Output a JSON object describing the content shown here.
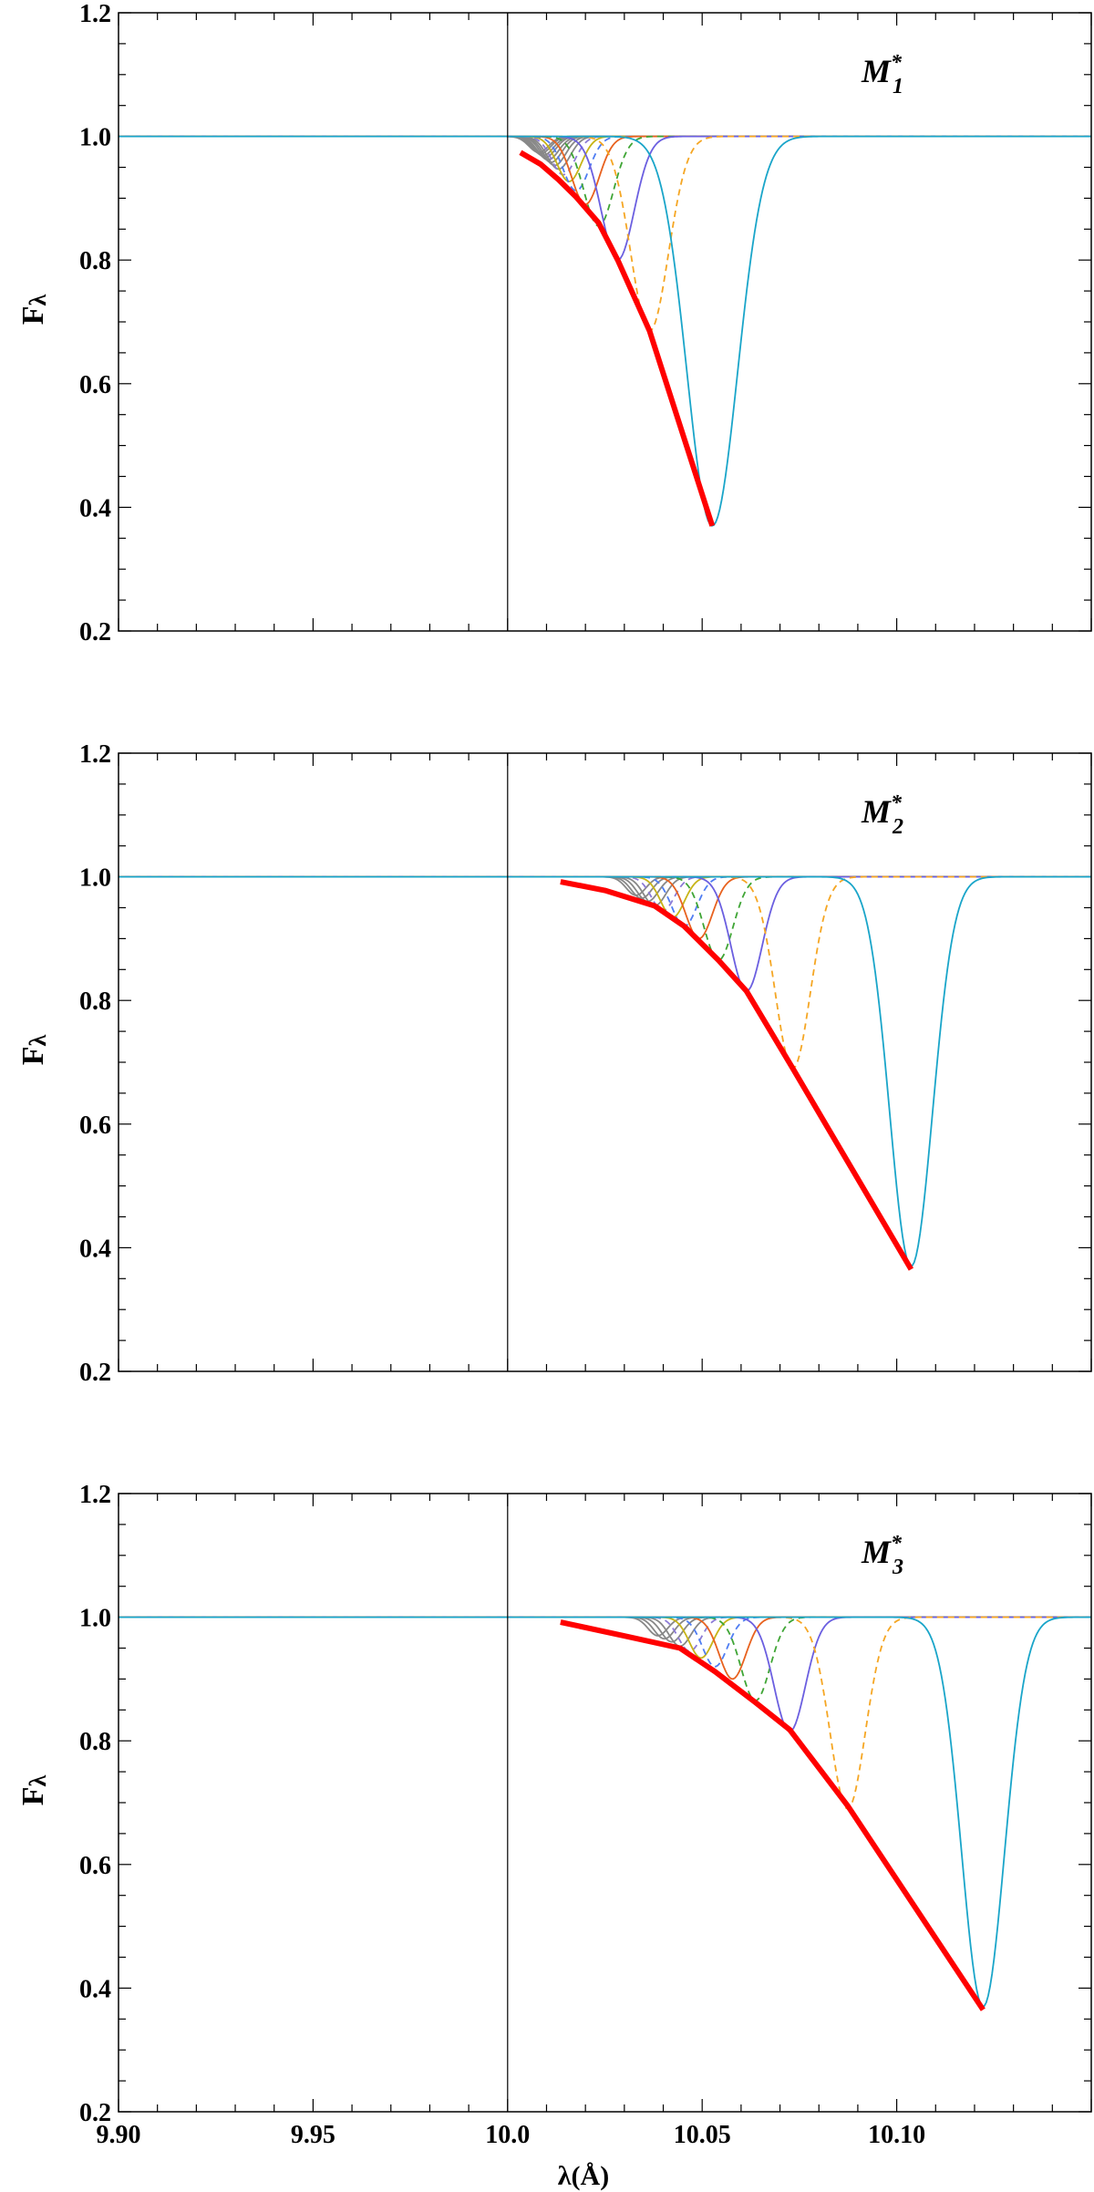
{
  "chart_data": {
    "type": "line",
    "xlabel": "λ(Å)",
    "x_ticks": [
      "9.90",
      "9.95",
      "10.0",
      "10.05",
      "10.10"
    ],
    "y_ticks": [
      "0.2",
      "0.4",
      "0.6",
      "0.8",
      "1.0",
      "1.2"
    ],
    "xlim": [
      9.9,
      10.15
    ],
    "ylim": [
      0.2,
      1.2
    ],
    "reference_line_x": 10.0,
    "grid": false,
    "panels": [
      {
        "title": "M",
        "title_subscript": "1",
        "title_superscript": "*",
        "ylabel": "F",
        "ylabel_subscript": "λ",
        "line_profiles": [
          {
            "center": 10.0526,
            "depth": 0.63,
            "width": 0.0065,
            "color": "#1aa5c9",
            "dashed": false
          },
          {
            "center": 10.0365,
            "depth": 0.315,
            "width": 0.0048,
            "color": "#f5a623",
            "dashed": true
          },
          {
            "center": 10.0283,
            "depth": 0.2,
            "width": 0.0042,
            "color": "#6b5fe0",
            "dashed": false
          },
          {
            "center": 10.0234,
            "depth": 0.145,
            "width": 0.0038,
            "color": "#3fa535",
            "dashed": true
          },
          {
            "center": 10.02,
            "depth": 0.11,
            "width": 0.0035,
            "color": "#e8621f",
            "dashed": false
          },
          {
            "center": 10.0176,
            "depth": 0.088,
            "width": 0.0033,
            "color": "#4f7df2",
            "dashed": true
          },
          {
            "center": 10.0158,
            "depth": 0.073,
            "width": 0.0031,
            "color": "#c7b417",
            "dashed": false
          },
          {
            "center": 10.0143,
            "depth": 0.062,
            "width": 0.003,
            "color": "#8c7bd6",
            "dashed": true
          },
          {
            "center": 10.0131,
            "depth": 0.053,
            "width": 0.0029,
            "color": "#888888",
            "dashed": false
          },
          {
            "center": 10.0121,
            "depth": 0.047,
            "width": 0.0028,
            "color": "#888888",
            "dashed": false
          },
          {
            "center": 10.0112,
            "depth": 0.042,
            "width": 0.0027,
            "color": "#888888",
            "dashed": false
          },
          {
            "center": 10.0104,
            "depth": 0.038,
            "width": 0.0027,
            "color": "#888888",
            "dashed": false
          },
          {
            "center": 10.0097,
            "depth": 0.034,
            "width": 0.0026,
            "color": "#888888",
            "dashed": false
          },
          {
            "center": 10.0091,
            "depth": 0.031,
            "width": 0.0026,
            "color": "#888888",
            "dashed": false
          },
          {
            "center": 10.0085,
            "depth": 0.028,
            "width": 0.0025,
            "color": "#888888",
            "dashed": false
          },
          {
            "center": 10.008,
            "depth": 0.026,
            "width": 0.0025,
            "color": "#888888",
            "dashed": false
          }
        ],
        "envelope": {
          "color": "#ff0000",
          "x": [
            10.0033,
            10.0085,
            10.0131,
            10.0176,
            10.0234,
            10.0283,
            10.0365,
            10.0526
          ],
          "y": [
            0.974,
            0.955,
            0.93,
            0.902,
            0.86,
            0.8,
            0.685,
            0.37
          ]
        }
      },
      {
        "title": "M",
        "title_subscript": "2",
        "title_superscript": "*",
        "ylabel": "F",
        "ylabel_subscript": "λ",
        "line_profiles": [
          {
            "center": 10.1037,
            "depth": 0.63,
            "width": 0.0055,
            "color": "#1aa5c9",
            "dashed": false
          },
          {
            "center": 10.0733,
            "depth": 0.31,
            "width": 0.0045,
            "color": "#f5a623",
            "dashed": true
          },
          {
            "center": 10.0614,
            "depth": 0.185,
            "width": 0.004,
            "color": "#6b5fe0",
            "dashed": false
          },
          {
            "center": 10.0542,
            "depth": 0.135,
            "width": 0.0037,
            "color": "#3fa535",
            "dashed": true
          },
          {
            "center": 10.0492,
            "depth": 0.1,
            "width": 0.0034,
            "color": "#e8621f",
            "dashed": false
          },
          {
            "center": 10.0454,
            "depth": 0.08,
            "width": 0.0032,
            "color": "#4f7df2",
            "dashed": true
          },
          {
            "center": 10.0424,
            "depth": 0.066,
            "width": 0.003,
            "color": "#c7b417",
            "dashed": false
          },
          {
            "center": 10.0399,
            "depth": 0.055,
            "width": 0.0029,
            "color": "#8c7bd6",
            "dashed": true
          },
          {
            "center": 10.0378,
            "depth": 0.047,
            "width": 0.0028,
            "color": "#888888",
            "dashed": false
          },
          {
            "center": 10.036,
            "depth": 0.04,
            "width": 0.0027,
            "color": "#888888",
            "dashed": false
          },
          {
            "center": 10.0344,
            "depth": 0.035,
            "width": 0.0026,
            "color": "#888888",
            "dashed": false
          },
          {
            "center": 10.033,
            "depth": 0.03,
            "width": 0.0025,
            "color": "#888888",
            "dashed": false
          }
        ],
        "envelope": {
          "color": "#ff0000",
          "x": [
            10.0136,
            10.025,
            10.0378,
            10.0454,
            10.0542,
            10.0614,
            10.0733,
            10.1037
          ],
          "y": [
            0.992,
            0.978,
            0.953,
            0.92,
            0.865,
            0.815,
            0.69,
            0.365
          ]
        }
      },
      {
        "title": "M",
        "title_subscript": "3",
        "title_superscript": "*",
        "ylabel": "F",
        "ylabel_subscript": "λ",
        "line_profiles": [
          {
            "center": 10.1222,
            "depth": 0.63,
            "width": 0.0055,
            "color": "#1aa5c9",
            "dashed": false
          },
          {
            "center": 10.0874,
            "depth": 0.31,
            "width": 0.0045,
            "color": "#f5a623",
            "dashed": true
          },
          {
            "center": 10.0725,
            "depth": 0.185,
            "width": 0.004,
            "color": "#6b5fe0",
            "dashed": false
          },
          {
            "center": 10.0637,
            "depth": 0.135,
            "width": 0.0037,
            "color": "#3fa535",
            "dashed": true
          },
          {
            "center": 10.0578,
            "depth": 0.1,
            "width": 0.0034,
            "color": "#e8621f",
            "dashed": false
          },
          {
            "center": 10.0533,
            "depth": 0.08,
            "width": 0.0032,
            "color": "#4f7df2",
            "dashed": true
          },
          {
            "center": 10.0497,
            "depth": 0.066,
            "width": 0.003,
            "color": "#c7b417",
            "dashed": false
          },
          {
            "center": 10.0468,
            "depth": 0.055,
            "width": 0.0029,
            "color": "#8c7bd6",
            "dashed": true
          },
          {
            "center": 10.0443,
            "depth": 0.047,
            "width": 0.0028,
            "color": "#888888",
            "dashed": false
          },
          {
            "center": 10.0422,
            "depth": 0.04,
            "width": 0.0027,
            "color": "#888888",
            "dashed": false
          },
          {
            "center": 10.0403,
            "depth": 0.035,
            "width": 0.0026,
            "color": "#888888",
            "dashed": false
          },
          {
            "center": 10.0386,
            "depth": 0.03,
            "width": 0.0025,
            "color": "#888888",
            "dashed": false
          }
        ],
        "envelope": {
          "color": "#ff0000",
          "x": [
            10.0136,
            10.0298,
            10.0443,
            10.0533,
            10.0637,
            10.0725,
            10.0874,
            10.1222
          ],
          "y": [
            0.992,
            0.97,
            0.95,
            0.912,
            0.862,
            0.818,
            0.695,
            0.365
          ]
        }
      }
    ]
  }
}
